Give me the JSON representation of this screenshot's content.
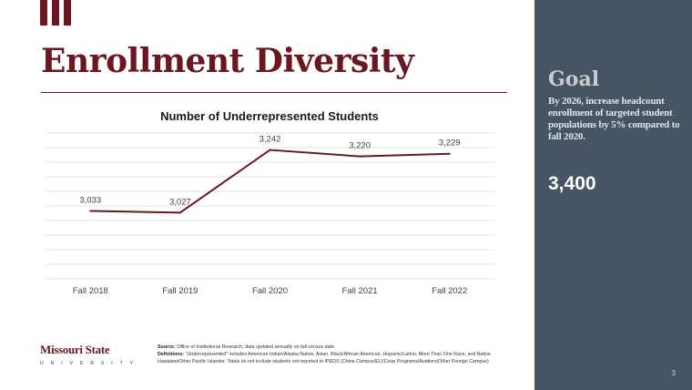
{
  "slide": {
    "title": "Enrollment Diversity",
    "page_number": "3"
  },
  "chart_data": {
    "type": "line",
    "title": "Number of Underrepresented Students",
    "categories": [
      "Fall 2018",
      "Fall 2019",
      "Fall 2020",
      "Fall 2021",
      "Fall 2022"
    ],
    "values": [
      3033,
      3027,
      3242,
      3220,
      3229
    ],
    "data_labels": [
      "3,033",
      "3,027",
      "3,242",
      "3,220",
      "3,229"
    ],
    "ylim": [
      2800,
      3300
    ],
    "grid": "horizontal",
    "legend": "none",
    "line_color": "#6b1620"
  },
  "goal": {
    "heading": "Goal",
    "text": "By 2026, increase headcount enrollment of targeted student populations by 5% compared to fall 2020.",
    "value": "3,400"
  },
  "footer": {
    "logo_name": "Missouri State",
    "logo_sub": "UNIVERSITY",
    "source_label": "Source:",
    "source_text": "Office of Institutional Research, data updated annually on fall census date",
    "definition_label": "Definitions:",
    "definition_text": "\"Underrepresented\" includes American Indian/Alaska Native, Asian, Black/African American, Hispanic/Latino, More Than One Race, and Native Hawaiian/Other Pacific Islander. Totals do not include students not reported to IPEDS (China Campus/ELI/Coop Programs/Auditors/Other Foreign Campus)"
  },
  "colors": {
    "brand_maroon": "#6b1620",
    "panel_slate": "#465563"
  }
}
